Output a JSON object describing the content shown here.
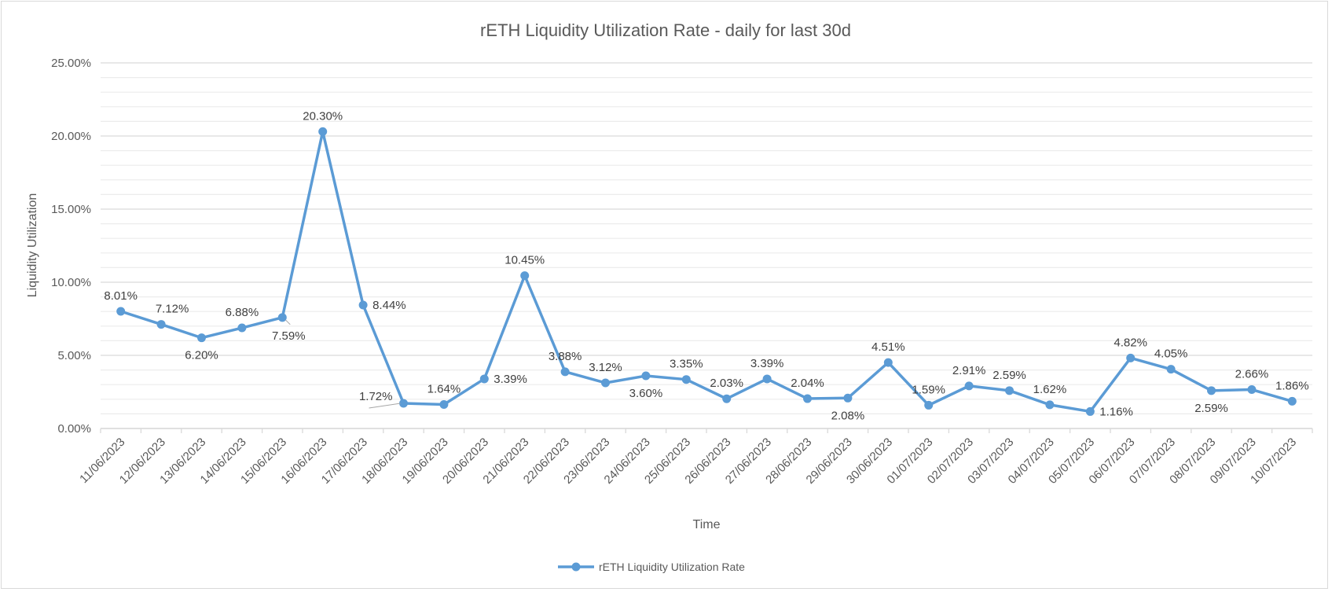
{
  "chart_data": {
    "type": "line",
    "title": "rETH Liquidity Utilization Rate - daily for last 30d",
    "xlabel": "Time",
    "ylabel": "Liquidity Utilization",
    "ylim": [
      0,
      25
    ],
    "yticks": [
      "0.00%",
      "5.00%",
      "10.00%",
      "15.00%",
      "20.00%",
      "25.00%"
    ],
    "minor_grid_step": 1,
    "grid": true,
    "legend_position": "bottom",
    "categories": [
      "11/06/2023",
      "12/06/2023",
      "13/06/2023",
      "14/06/2023",
      "15/06/2023",
      "16/06/2023",
      "17/06/2023",
      "18/06/2023",
      "19/06/2023",
      "20/06/2023",
      "21/06/2023",
      "22/06/2023",
      "23/06/2023",
      "24/06/2023",
      "25/06/2023",
      "26/06/2023",
      "27/06/2023",
      "28/06/2023",
      "29/06/2023",
      "30/06/2023",
      "01/07/2023",
      "02/07/2023",
      "03/07/2023",
      "04/07/2023",
      "05/07/2023",
      "06/07/2023",
      "07/07/2023",
      "08/07/2023",
      "09/07/2023",
      "10/07/2023"
    ],
    "series": [
      {
        "name": "rETH Liquidity Utilization Rate",
        "color": "#5B9BD5",
        "values": [
          8.01,
          7.12,
          6.2,
          6.88,
          7.59,
          20.3,
          8.44,
          1.72,
          1.64,
          3.39,
          10.45,
          3.88,
          3.12,
          3.6,
          3.35,
          2.03,
          3.39,
          2.04,
          2.08,
          4.51,
          1.59,
          2.91,
          2.59,
          1.62,
          1.16,
          4.82,
          4.05,
          2.59,
          2.66,
          1.86
        ],
        "labels": [
          "8.01%",
          "7.12%",
          "6.20%",
          "6.88%",
          "7.59%",
          "20.30%",
          "8.44%",
          "1.72%",
          "1.64%",
          "3.39%",
          "10.45%",
          "3.88%",
          "3.12%",
          "3.60%",
          "3.35%",
          "2.03%",
          "3.39%",
          "2.04%",
          "2.08%",
          "4.51%",
          "1.59%",
          "2.91%",
          "2.59%",
          "1.62%",
          "1.16%",
          "4.82%",
          "4.05%",
          "2.59%",
          "2.66%",
          "1.86%"
        ],
        "label_placement": [
          "above",
          "above",
          "below",
          "above",
          "below-right",
          "above",
          "right",
          "left",
          "above",
          "right",
          "above",
          "above",
          "above",
          "below",
          "above",
          "above",
          "above",
          "above",
          "below",
          "above",
          "above",
          "above",
          "above",
          "above",
          "right",
          "above",
          "above",
          "below",
          "above",
          "above"
        ]
      }
    ]
  }
}
